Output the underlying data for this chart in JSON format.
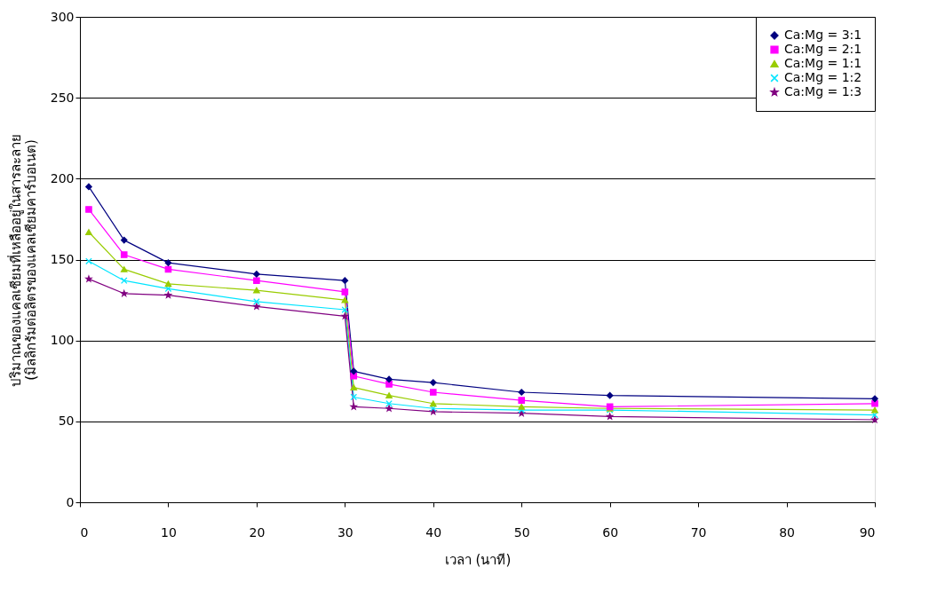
{
  "chart_data": {
    "type": "line",
    "xlabel": "เวลา (นาที)",
    "ylabel": "ปริมาณของแคลเซียมที่เหลืออยู่ในสารละลาย\n(มิลลิกรัมต่อลิตรของแคลเซียมคาร์บอเนต)",
    "x": [
      1,
      5,
      10,
      20,
      30,
      31,
      35,
      40,
      50,
      60,
      90
    ],
    "series": [
      {
        "name": "Ca:Mg = 3:1",
        "color": "#000080",
        "marker": "diamond",
        "values": [
          195,
          162,
          148,
          141,
          137,
          81,
          76,
          74,
          68,
          66,
          64
        ]
      },
      {
        "name": "Ca:Mg = 2:1",
        "color": "#ff00ff",
        "marker": "square",
        "values": [
          181,
          153,
          144,
          137,
          130,
          78,
          73,
          68,
          63,
          59,
          61
        ]
      },
      {
        "name": "Ca:Mg = 1:1",
        "color": "#99cc00",
        "marker": "triangle",
        "values": [
          167,
          144,
          135,
          131,
          125,
          71,
          66,
          61,
          59,
          58,
          57
        ]
      },
      {
        "name": "Ca:Mg = 1:2",
        "color": "#00e5ff",
        "marker": "cross",
        "values": [
          149,
          137,
          132,
          124,
          119,
          65,
          61,
          58,
          57,
          57,
          54
        ]
      },
      {
        "name": "Ca:Mg = 1:3",
        "color": "#800080",
        "marker": "star",
        "values": [
          138,
          129,
          128,
          121,
          115,
          59,
          58,
          56,
          55,
          53,
          51
        ]
      }
    ],
    "xlim": [
      0,
      90
    ],
    "xticks": [
      0,
      10,
      20,
      30,
      40,
      50,
      60,
      70,
      80,
      90
    ],
    "ylim": [
      0,
      300
    ],
    "yticks": [
      0,
      50,
      100,
      150,
      200,
      250,
      300
    ],
    "grid": "y",
    "legend": "top right"
  }
}
